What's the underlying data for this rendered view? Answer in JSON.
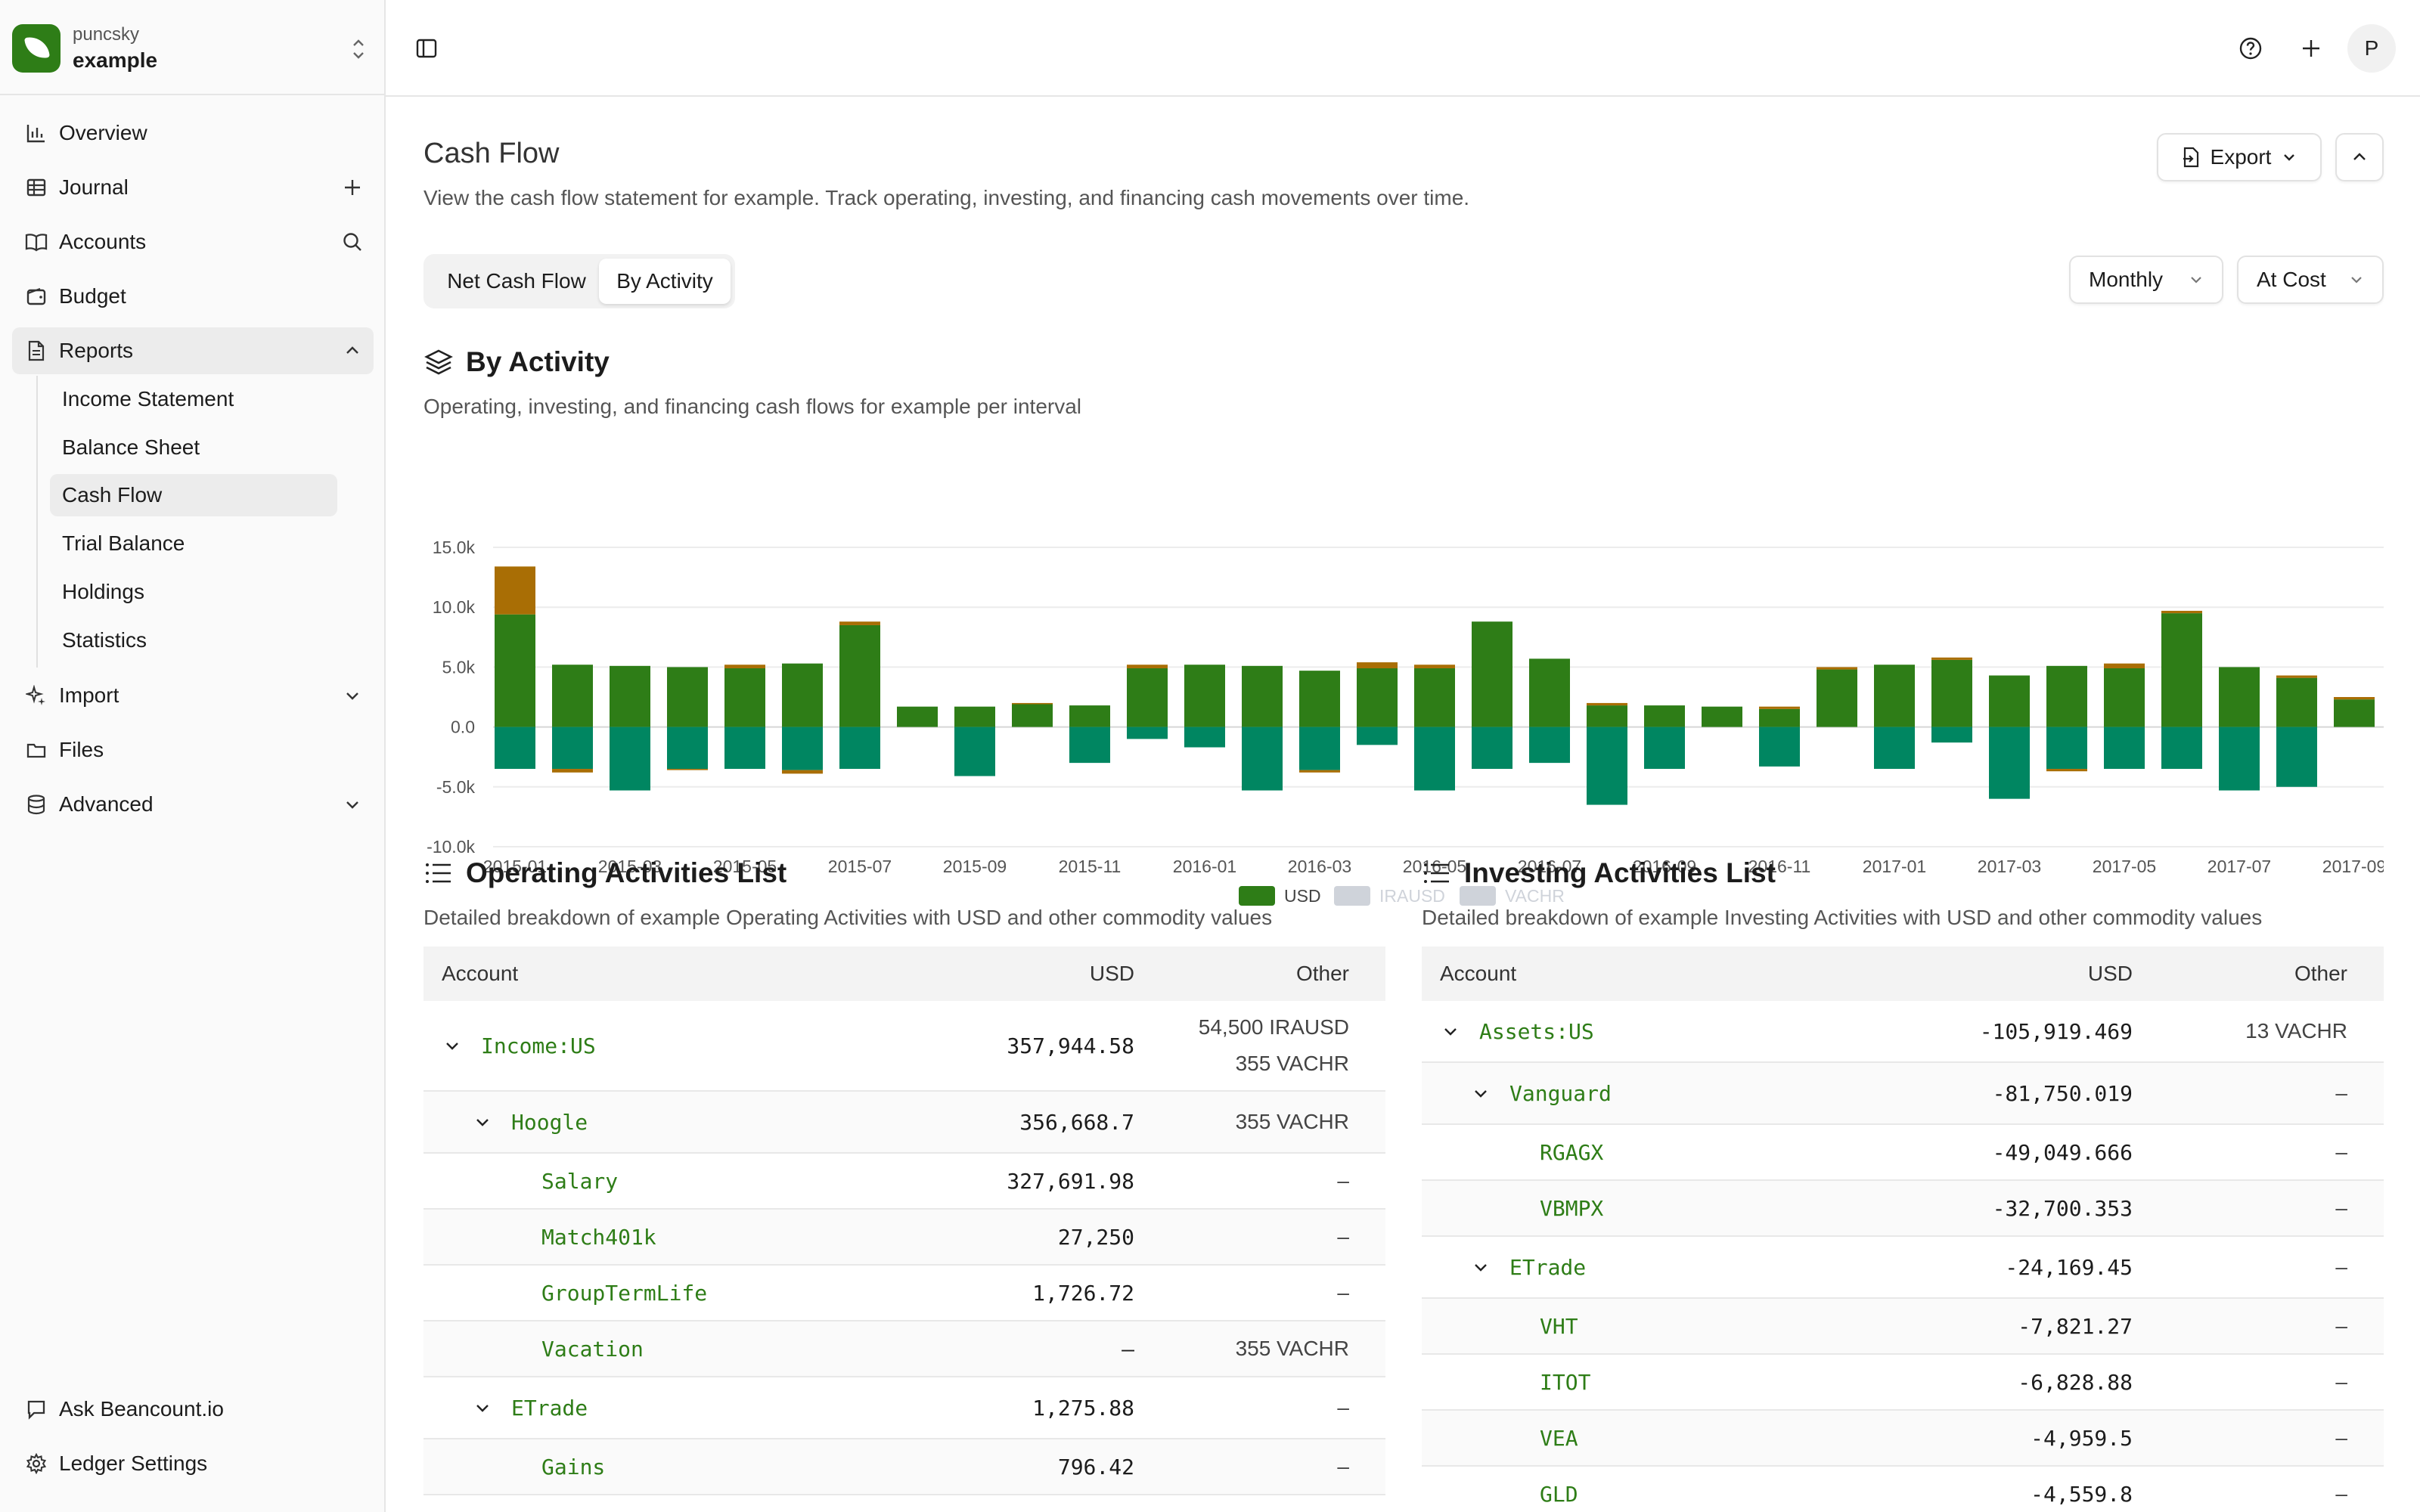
{
  "workspace": {
    "org": "puncsky",
    "ledger": "example"
  },
  "sidebar": {
    "items": [
      {
        "label": "Overview"
      },
      {
        "label": "Journal"
      },
      {
        "label": "Accounts"
      },
      {
        "label": "Budget"
      },
      {
        "label": "Reports"
      },
      {
        "label": "Import"
      },
      {
        "label": "Files"
      },
      {
        "label": "Advanced"
      }
    ],
    "reports_sub": [
      {
        "label": "Income Statement"
      },
      {
        "label": "Balance Sheet"
      },
      {
        "label": "Cash Flow"
      },
      {
        "label": "Trial Balance"
      },
      {
        "label": "Holdings"
      },
      {
        "label": "Statistics"
      }
    ],
    "footer": [
      {
        "label": "Ask Beancount.io"
      },
      {
        "label": "Ledger Settings"
      }
    ]
  },
  "topbar": {
    "avatar_initial": "P"
  },
  "page": {
    "title": "Cash Flow",
    "description": "View the cash flow statement for example. Track operating, investing, and financing cash movements over time.",
    "export_label": "Export",
    "tabs": [
      "Net Cash Flow",
      "By Activity"
    ],
    "interval_select": "Monthly",
    "valuation_select": "At Cost"
  },
  "activity_section": {
    "title": "By Activity",
    "description": "Operating, investing, and financing cash flows for example per interval"
  },
  "chart_data": {
    "type": "bar",
    "stacked": true,
    "yticks": [
      "15.0k",
      "10.0k",
      "5.0k",
      "0.0",
      "-5.0k",
      "-10.0k"
    ],
    "ylim": [
      -10000,
      15000
    ],
    "categories": [
      "2015-01",
      "2015-02",
      "2015-03",
      "2015-04",
      "2015-05",
      "2015-06",
      "2015-07",
      "2015-08",
      "2015-09",
      "2015-10",
      "2015-11",
      "2015-12",
      "2016-01",
      "2016-02",
      "2016-03",
      "2016-04",
      "2016-05",
      "2016-06",
      "2016-07",
      "2016-08",
      "2016-09",
      "2016-10",
      "2016-11",
      "2016-12",
      "2017-01",
      "2017-02",
      "2017-03",
      "2017-04",
      "2017-05",
      "2017-06",
      "2017-07",
      "2017-08",
      "2017-09"
    ],
    "xtick_labels": [
      "2015-01",
      "2015-03",
      "2015-05",
      "2015-07",
      "2015-09",
      "2015-11",
      "2016-01",
      "2016-03",
      "2016-05",
      "2016-07",
      "2016-09",
      "2016-11",
      "2017-01",
      "2017-03",
      "2017-05",
      "2017-07",
      "2017-09"
    ],
    "legend": [
      {
        "name": "USD",
        "color": "#2e7d17",
        "active": true
      },
      {
        "name": "IRAUSD",
        "color": "#cfd3da",
        "active": false
      },
      {
        "name": "VACHR",
        "color": "#cfd3da",
        "active": false
      }
    ],
    "series": [
      {
        "activity": "operating",
        "color": "#2e7d17",
        "values": [
          9400,
          5200,
          5100,
          5000,
          4900,
          5300,
          8500,
          1700,
          1700,
          1900,
          1800,
          4900,
          5200,
          5100,
          4700,
          4900,
          4900,
          8800,
          5700,
          1800,
          1800,
          1700,
          1500,
          4800,
          5200,
          5600,
          4300,
          5100,
          4900,
          9500,
          5000,
          4100,
          2300
        ]
      },
      {
        "activity": "financing",
        "color": "#a96e05",
        "values": [
          4000,
          0,
          0,
          0,
          300,
          0,
          300,
          0,
          0,
          100,
          0,
          300,
          0,
          0,
          0,
          500,
          300,
          0,
          0,
          200,
          0,
          0,
          200,
          200,
          0,
          200,
          0,
          0,
          400,
          200,
          0,
          200,
          200
        ]
      },
      {
        "activity": "investing",
        "color": "#008661",
        "values": [
          -3500,
          -3500,
          -5300,
          -3500,
          -3500,
          -3600,
          -3500,
          0,
          -4100,
          0,
          -3000,
          -1000,
          -1700,
          -5300,
          -3600,
          -1500,
          -5300,
          -3500,
          -3000,
          -6500,
          -3500,
          0,
          -3300,
          0,
          -3500,
          -1300,
          -6000,
          -3500,
          -3500,
          -3500,
          -5300,
          -5000,
          0
        ]
      },
      {
        "activity": "investing-adjustment",
        "color": "#a96e05",
        "values": [
          0,
          -300,
          0,
          -100,
          0,
          -300,
          0,
          0,
          0,
          0,
          0,
          0,
          0,
          0,
          -200,
          0,
          0,
          0,
          0,
          0,
          0,
          0,
          0,
          0,
          0,
          0,
          0,
          -200,
          0,
          0,
          0,
          0,
          0
        ]
      }
    ]
  },
  "operating": {
    "title": "Operating Activities List",
    "description": "Detailed breakdown of example Operating Activities with USD and other commodity values",
    "columns": [
      "Account",
      "USD",
      "Other"
    ],
    "rows": [
      {
        "account": "Income:US",
        "usd": "357,944.58",
        "other": [
          "54,500 IRAUSD",
          "355 VACHR"
        ]
      },
      {
        "account": "Hoogle",
        "usd": "356,668.7",
        "other": [
          "355 VACHR"
        ]
      },
      {
        "account": "Salary",
        "usd": "327,691.98",
        "other": [
          "–"
        ]
      },
      {
        "account": "Match401k",
        "usd": "27,250",
        "other": [
          "–"
        ]
      },
      {
        "account": "GroupTermLife",
        "usd": "1,726.72",
        "other": [
          "–"
        ]
      },
      {
        "account": "Vacation",
        "usd": "–",
        "other": [
          "355 VACHR"
        ]
      },
      {
        "account": "ETrade",
        "usd": "1,275.88",
        "other": [
          "–"
        ]
      },
      {
        "account": "Gains",
        "usd": "796.42",
        "other": [
          "–"
        ]
      }
    ]
  },
  "investing": {
    "title": "Investing Activities List",
    "description": "Detailed breakdown of example Investing Activities with USD and other commodity values",
    "columns": [
      "Account",
      "USD",
      "Other"
    ],
    "rows": [
      {
        "account": "Assets:US",
        "usd": "-105,919.469",
        "other": [
          "13 VACHR"
        ]
      },
      {
        "account": "Vanguard",
        "usd": "-81,750.019",
        "other": [
          "–"
        ]
      },
      {
        "account": "RGAGX",
        "usd": "-49,049.666",
        "other": [
          "–"
        ]
      },
      {
        "account": "VBMPX",
        "usd": "-32,700.353",
        "other": [
          "–"
        ]
      },
      {
        "account": "ETrade",
        "usd": "-24,169.45",
        "other": [
          "–"
        ]
      },
      {
        "account": "VHT",
        "usd": "-7,821.27",
        "other": [
          "–"
        ]
      },
      {
        "account": "ITOT",
        "usd": "-6,828.88",
        "other": [
          "–"
        ]
      },
      {
        "account": "VEA",
        "usd": "-4,959.5",
        "other": [
          "–"
        ]
      },
      {
        "account": "GLD",
        "usd": "-4,559.8",
        "other": [
          "–"
        ]
      }
    ]
  }
}
